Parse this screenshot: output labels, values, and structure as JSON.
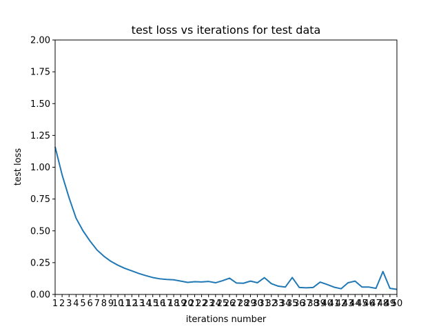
{
  "chart_data": {
    "type": "line",
    "title": "test loss vs iterations for test data",
    "xlabel": "iterations number",
    "ylabel": "test loss",
    "x": [
      1,
      2,
      3,
      4,
      5,
      6,
      7,
      8,
      9,
      10,
      11,
      12,
      13,
      14,
      15,
      16,
      17,
      18,
      19,
      20,
      21,
      22,
      23,
      24,
      25,
      26,
      27,
      28,
      29,
      30,
      31,
      32,
      33,
      34,
      35,
      36,
      37,
      38,
      39,
      40,
      41,
      42,
      43,
      44,
      45,
      46,
      47,
      48,
      49,
      50
    ],
    "xlim": [
      1,
      50
    ],
    "ylim": [
      0,
      2.0
    ],
    "yticks": [
      "0.00",
      "0.25",
      "0.50",
      "0.75",
      "1.00",
      "1.25",
      "1.50",
      "1.75",
      "2.00"
    ],
    "grid": false,
    "series": [
      {
        "color": "#1f77b4",
        "values": [
          1.16,
          0.94,
          0.76,
          0.6,
          0.5,
          0.42,
          0.35,
          0.3,
          0.26,
          0.23,
          0.205,
          0.185,
          0.165,
          0.148,
          0.133,
          0.123,
          0.118,
          0.115,
          0.105,
          0.095,
          0.1,
          0.098,
          0.102,
          0.092,
          0.108,
          0.128,
          0.09,
          0.088,
          0.105,
          0.092,
          0.132,
          0.085,
          0.065,
          0.058,
          0.133,
          0.055,
          0.052,
          0.055,
          0.097,
          0.078,
          0.057,
          0.045,
          0.092,
          0.105,
          0.058,
          0.058,
          0.048,
          0.18,
          0.048,
          0.04
        ]
      }
    ]
  }
}
